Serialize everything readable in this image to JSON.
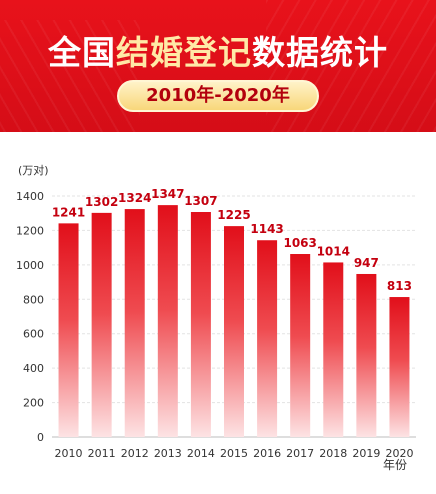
{
  "header": {
    "title_prefix": "全国",
    "title_highlight": "结婚登记",
    "title_suffix": "数据统计",
    "period": "2010年-2020年"
  },
  "colors": {
    "banner": "#e8121b",
    "bar_top": "#e10f1a",
    "label": "#c4000f",
    "pill": "#f8d77a"
  },
  "chart_data": {
    "type": "bar",
    "categories": [
      "2010",
      "2011",
      "2012",
      "2013",
      "2014",
      "2015",
      "2016",
      "2017",
      "2018",
      "2019",
      "2020"
    ],
    "values": [
      1241,
      1302,
      1324,
      1347,
      1307,
      1225,
      1143,
      1063,
      1014,
      947,
      813
    ],
    "ylabel": "(万对)",
    "xlabel": "年份",
    "ylim": [
      0,
      1400
    ],
    "yticks": [
      0,
      200,
      400,
      600,
      800,
      1000,
      1200,
      1400
    ],
    "grid": true
  }
}
